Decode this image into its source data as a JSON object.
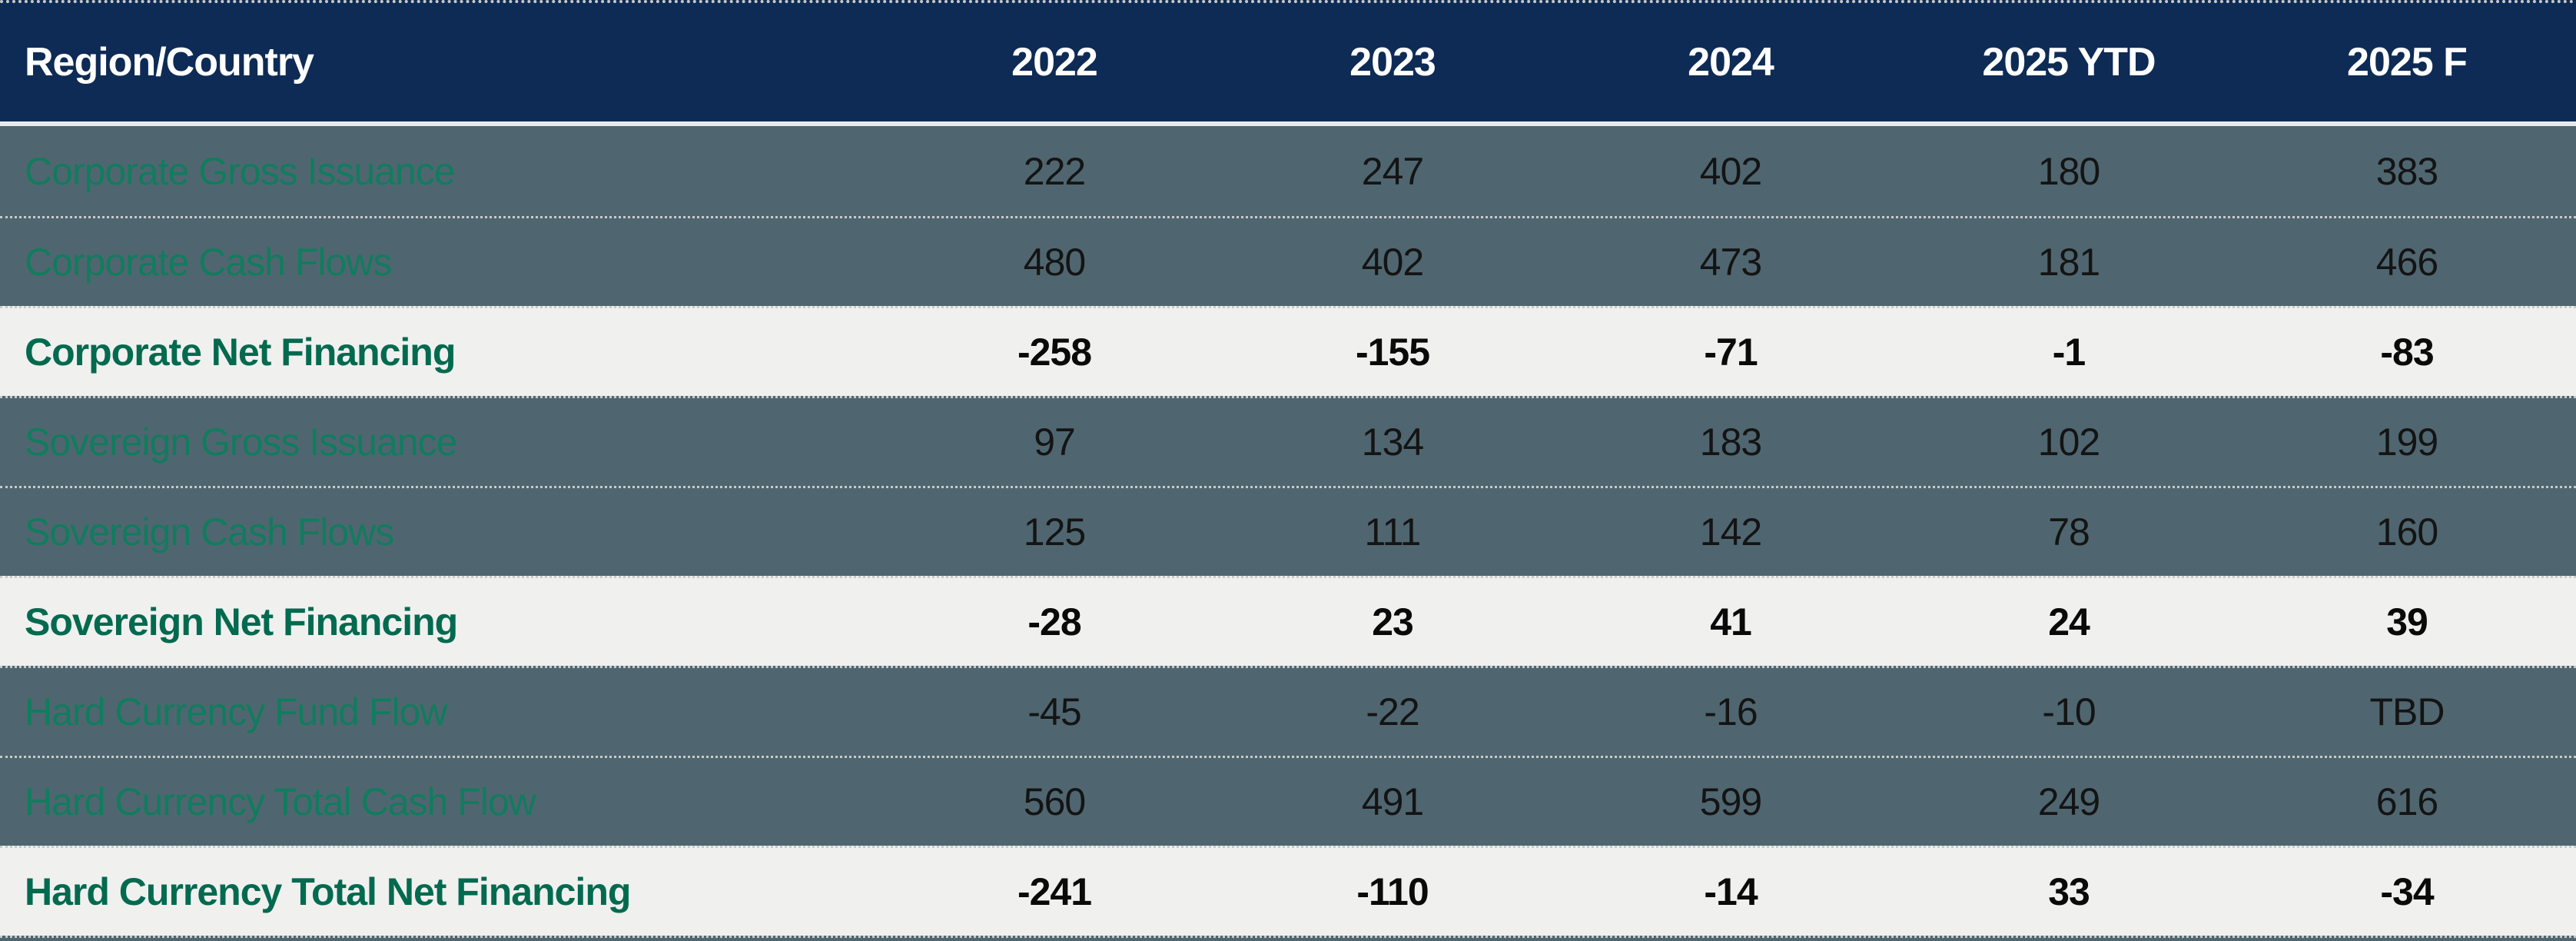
{
  "colors": {
    "header_bg": "#0e2b55",
    "row_bg": "#4f6670",
    "total_row_bg": "#f0f0ef",
    "label_green": "#117c5e",
    "total_green": "#026a4f",
    "value_color": "#141414"
  },
  "chart_data": {
    "type": "table",
    "title": "",
    "columns": [
      "Region/Country",
      "2022",
      "2023",
      "2024",
      "2025 YTD",
      "2025 F"
    ],
    "rows": [
      {
        "label": "Corporate Gross Issuance",
        "values": [
          "222",
          "247",
          "402",
          "180",
          "383"
        ],
        "emphasis": false
      },
      {
        "label": "Corporate Cash Flows",
        "values": [
          "480",
          "402",
          "473",
          "181",
          "466"
        ],
        "emphasis": false
      },
      {
        "label": "Corporate Net Financing",
        "values": [
          "-258",
          "-155",
          "-71",
          "-1",
          "-83"
        ],
        "emphasis": true
      },
      {
        "label": "Sovereign Gross Issuance",
        "values": [
          "97",
          "134",
          "183",
          "102",
          "199"
        ],
        "emphasis": false
      },
      {
        "label": "Sovereign Cash Flows",
        "values": [
          "125",
          "111",
          "142",
          "78",
          "160"
        ],
        "emphasis": false
      },
      {
        "label": "Sovereign Net Financing",
        "values": [
          "-28",
          "23",
          "41",
          "24",
          "39"
        ],
        "emphasis": true
      },
      {
        "label": "Hard Currency Fund Flow",
        "values": [
          "-45",
          "-22",
          "-16",
          "-10",
          "TBD"
        ],
        "emphasis": false
      },
      {
        "label": "Hard Currency Total Cash Flow",
        "values": [
          "560",
          "491",
          "599",
          "249",
          "616"
        ],
        "emphasis": false
      },
      {
        "label": "Hard Currency Total Net Financing",
        "values": [
          "-241",
          "-110",
          "-14",
          "33",
          "-34"
        ],
        "emphasis": true
      }
    ],
    "layout": {
      "first_column_align": "left",
      "numeric_columns_align": "center",
      "row_separator": "dotted",
      "emphasis_rows_background": "light",
      "data_rows_background": "slate"
    }
  }
}
